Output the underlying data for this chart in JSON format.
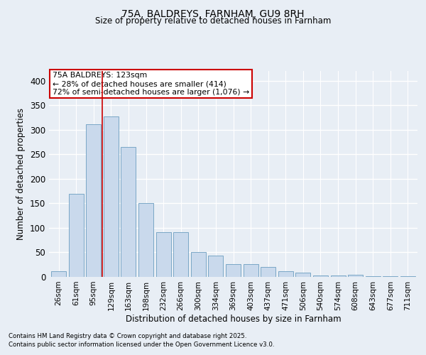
{
  "title1": "75A, BALDREYS, FARNHAM, GU9 8RH",
  "title2": "Size of property relative to detached houses in Farnham",
  "xlabel": "Distribution of detached houses by size in Farnham",
  "ylabel": "Number of detached properties",
  "categories": [
    "26sqm",
    "61sqm",
    "95sqm",
    "129sqm",
    "163sqm",
    "198sqm",
    "232sqm",
    "266sqm",
    "300sqm",
    "334sqm",
    "369sqm",
    "403sqm",
    "437sqm",
    "471sqm",
    "506sqm",
    "540sqm",
    "574sqm",
    "608sqm",
    "643sqm",
    "677sqm",
    "711sqm"
  ],
  "values": [
    11,
    170,
    312,
    328,
    265,
    151,
    91,
    91,
    50,
    43,
    26,
    26,
    20,
    12,
    9,
    3,
    3,
    5,
    1,
    2,
    2
  ],
  "bar_color": "#c9d9ec",
  "bar_edge_color": "#6b9dc0",
  "vline_color": "#cc0000",
  "annotation_lines": [
    "75A BALDREYS: 123sqm",
    "← 28% of detached houses are smaller (414)",
    "72% of semi-detached houses are larger (1,076) →"
  ],
  "annotation_box_color": "#ffffff",
  "annotation_box_edge": "#cc0000",
  "bg_color": "#e8eef5",
  "grid_color": "#ffffff",
  "footnote1": "Contains HM Land Registry data © Crown copyright and database right 2025.",
  "footnote2": "Contains public sector information licensed under the Open Government Licence v3.0.",
  "ylim": [
    0,
    420
  ],
  "yticks": [
    0,
    50,
    100,
    150,
    200,
    250,
    300,
    350,
    400
  ]
}
